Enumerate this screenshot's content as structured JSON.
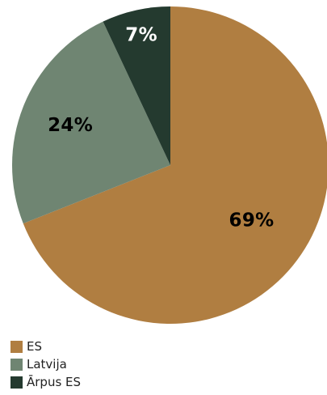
{
  "chart_data": {
    "type": "pie",
    "title": "",
    "slices": [
      {
        "name": "ES",
        "value": 69,
        "label": "69%",
        "color": "#b07e41"
      },
      {
        "name": "Latvija",
        "value": 24,
        "label": "24%",
        "color": "#6f8572"
      },
      {
        "name": "Ārpus ES",
        "value": 7,
        "label": "7%",
        "color": "#243a2f"
      }
    ],
    "start_angle": "12 o'clock",
    "direction": "clockwise",
    "label_color": "#000000",
    "label_color_on_dark": "#ffffff",
    "legend_position": "bottom-left"
  },
  "legend": {
    "items": [
      {
        "label": "ES",
        "color": "#b07e41"
      },
      {
        "label": "Latvija",
        "color": "#6f8572"
      },
      {
        "label": "Ārpus ES",
        "color": "#243a2f"
      }
    ]
  }
}
